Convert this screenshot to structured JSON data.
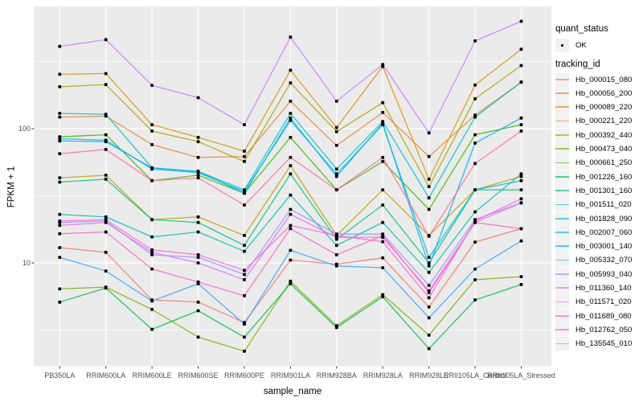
{
  "colors": {
    "panel_bg": "#EBEBEB",
    "grid": "#FFFFFF",
    "tick_mark": "#333333",
    "tick_label": "#4D4D4D",
    "axis_title": "#000000",
    "legend_key_bg": "#F2F2F2",
    "point": "#000000"
  },
  "chart_data": {
    "type": "line",
    "title": "",
    "xlabel": "sample_name",
    "ylabel": "FPKM + 1",
    "x_type": "categorical",
    "y_scale": "log10",
    "ylim": [
      1.7,
      820
    ],
    "grid": true,
    "legend_position": "right",
    "y_tick_labels": [
      "100",
      "10"
    ],
    "y_major_ticks": [
      100,
      10
    ],
    "y_minor_gridlines": [
      316,
      31.6,
      3.16
    ],
    "point_marker": {
      "shape": "small-black-square",
      "meaning": "quant_status = OK"
    },
    "legend": {
      "quant_status_title": "quant_status",
      "quant_status_items": [
        "OK"
      ],
      "tracking_id_title": "tracking_id"
    },
    "categories": [
      "PB350LA",
      "RRIM600LA",
      "RRIM600LE",
      "RRIM600SE",
      "RRIM600PE",
      "RRIM901LA",
      "RRIM928BA",
      "RRIM928LA",
      "RRIM928LE",
      "RRII105LA_Control",
      "RRII105LA_Stressed"
    ],
    "series": [
      {
        "name": "Hb_000015_080",
        "color": "#F8766D",
        "values": [
          13,
          12,
          5.3,
          5.1,
          3.6,
          10.5,
          9.8,
          10.9,
          4.7,
          14.3,
          18
        ]
      },
      {
        "name": "Hb_000056_200",
        "color": "#EA8331",
        "values": [
          122,
          124,
          76,
          61,
          62,
          160,
          75,
          132,
          62,
          126,
          222
        ]
      },
      {
        "name": "Hb_000089_220",
        "color": "#D89000",
        "values": [
          254,
          257,
          107,
          86,
          68,
          272,
          102,
          290,
          42,
          211,
          390
        ]
      },
      {
        "name": "Hb_000221_220",
        "color": "#C09B00",
        "values": [
          43,
          45,
          21,
          22,
          16,
          53,
          16,
          35,
          16,
          35,
          44
        ]
      },
      {
        "name": "Hb_000392_440",
        "color": "#A3A500",
        "values": [
          205,
          213,
          96,
          80,
          57,
          219,
          95,
          156,
          37,
          167,
          295
        ]
      },
      {
        "name": "Hb_000473_040",
        "color": "#7CAE00",
        "values": [
          6.4,
          6.6,
          4.5,
          2.8,
          2.2,
          7.3,
          3.4,
          5.8,
          2.9,
          7.5,
          7.9
        ]
      },
      {
        "name": "Hb_000661_250",
        "color": "#39B600",
        "values": [
          87,
          90,
          41,
          45,
          33,
          86,
          35,
          57,
          25,
          90,
          107
        ]
      },
      {
        "name": "Hb_001226_160",
        "color": "#00BB4E",
        "values": [
          5.1,
          6.5,
          3.2,
          4.4,
          2.8,
          7.0,
          3.3,
          5.6,
          2.3,
          5.3,
          6.9
        ]
      },
      {
        "name": "Hb_001301_160",
        "color": "#00BF7D",
        "values": [
          40,
          42,
          21,
          20,
          13.5,
          46,
          15,
          27,
          10,
          35,
          35
        ]
      },
      {
        "name": "Hb_001511_020",
        "color": "#00C1A9",
        "values": [
          23,
          22,
          15.6,
          17,
          12.2,
          32,
          13.5,
          20,
          8.5,
          24,
          46
        ]
      },
      {
        "name": "Hb_001828_090",
        "color": "#00BFC4",
        "values": [
          130,
          128,
          51,
          48,
          35,
          130,
          50,
          113,
          30.5,
          122,
          222
        ]
      },
      {
        "name": "Hb_002007_060",
        "color": "#00BAE0",
        "values": [
          84,
          82,
          50,
          47,
          34,
          115,
          46,
          107,
          11,
          35,
          41
        ]
      },
      {
        "name": "Hb_003001_140",
        "color": "#00B0F6",
        "values": [
          81,
          80,
          51,
          48,
          33,
          120,
          44,
          110,
          9.5,
          78,
          120
        ]
      },
      {
        "name": "Hb_005332_070",
        "color": "#35A2FF",
        "values": [
          11,
          8.7,
          5.2,
          7.0,
          3.5,
          12.4,
          9.5,
          9.2,
          3.9,
          9.0,
          14.6
        ]
      },
      {
        "name": "Hb_005993_040",
        "color": "#9590FF",
        "values": [
          20,
          20.5,
          11.5,
          11,
          8.2,
          25,
          16.4,
          16.4,
          6.8,
          21,
          28
        ]
      },
      {
        "name": "Hb_011360_140",
        "color": "#C77CFF",
        "values": [
          410,
          460,
          210,
          170,
          107,
          480,
          160,
          300,
          93,
          450,
          630
        ]
      },
      {
        "name": "Hb_011571_020",
        "color": "#E76BF3",
        "values": [
          19,
          20,
          12,
          10,
          7.5,
          23,
          15.5,
          15.5,
          6.2,
          20,
          28
        ]
      },
      {
        "name": "Hb_011689_080",
        "color": "#FA62DB",
        "values": [
          20.5,
          21,
          12.5,
          11.5,
          8.8,
          19,
          16,
          14.4,
          5.5,
          20.5,
          30
        ]
      },
      {
        "name": "Hb_012762_050",
        "color": "#FF62BC",
        "values": [
          16.5,
          17,
          9,
          7.2,
          5.7,
          18,
          11.5,
          16,
          6.0,
          20,
          18
        ]
      },
      {
        "name": "Hb_135545_010",
        "color": "#FF6A98",
        "values": [
          65,
          70,
          41,
          43,
          27,
          61,
          35,
          61,
          15.8,
          55,
          96
        ]
      }
    ]
  }
}
